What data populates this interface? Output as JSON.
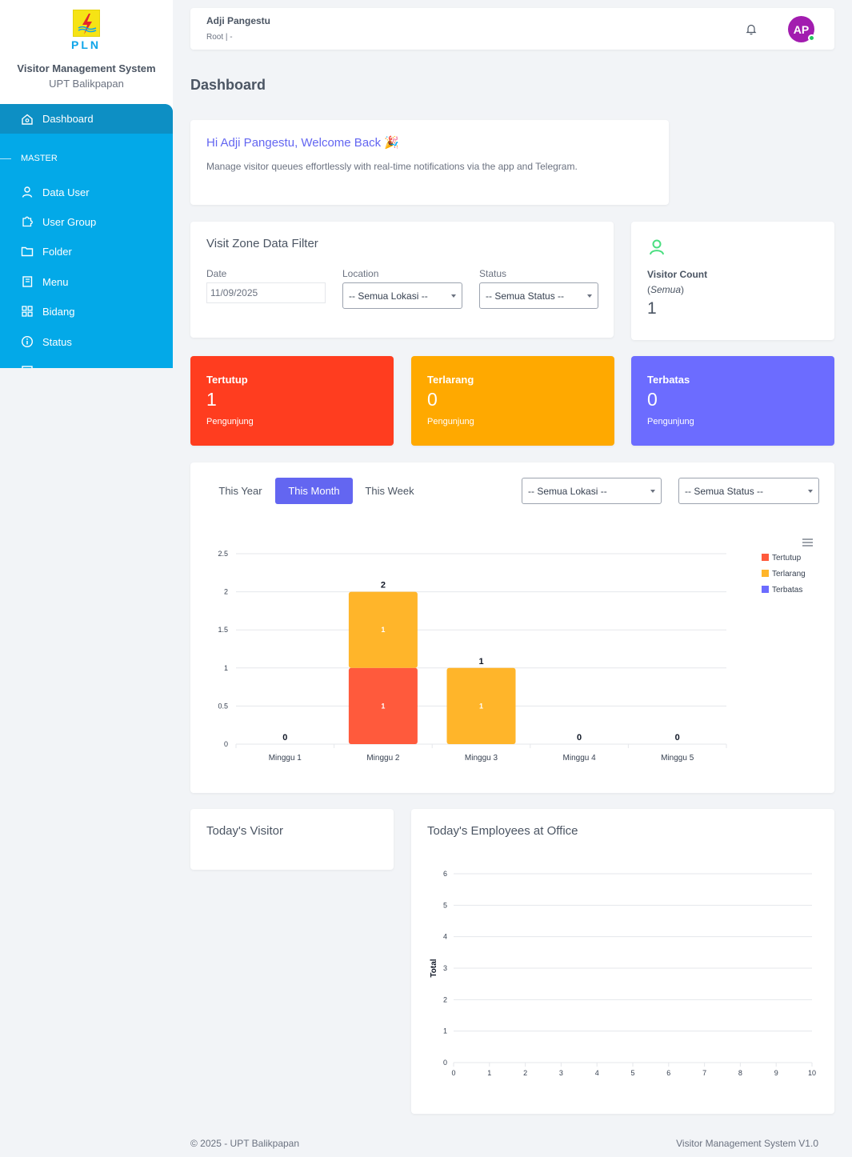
{
  "app": {
    "logo_text": "PLN",
    "title": "Visitor Management System",
    "subtitle": "UPT Balikpapan"
  },
  "sidebar": {
    "active": {
      "label": "Dashboard",
      "icon": "home-icon"
    },
    "section": "MASTER",
    "items": [
      {
        "label": "Data User",
        "icon": "user-icon"
      },
      {
        "label": "User Group",
        "icon": "puzzle-icon"
      },
      {
        "label": "Folder",
        "icon": "folder-icon"
      },
      {
        "label": "Menu",
        "icon": "book-icon"
      },
      {
        "label": "Bidang",
        "icon": "grid-icon"
      },
      {
        "label": "Status",
        "icon": "info-icon"
      }
    ]
  },
  "topbar": {
    "user_name": "Adji Pangestu",
    "user_role": "Root | -",
    "avatar_initials": "AP"
  },
  "page_title": "Dashboard",
  "welcome": {
    "title": "Hi Adji Pangestu, Welcome Back 🎉",
    "text": "Manage visitor queues effortlessly with real-time notifications via the app and Telegram."
  },
  "filter": {
    "title": "Visit Zone Data Filter",
    "date_label": "Date",
    "date_value": "11/09/2025",
    "location_label": "Location",
    "location_value": "-- Semua Lokasi --",
    "status_label": "Status",
    "status_value": "-- Semua Status --"
  },
  "visitor_count": {
    "label": "Visitor Count",
    "sub_prefix": "(",
    "sub_value": "Semua",
    "sub_suffix": ")",
    "value": "1"
  },
  "stats": [
    {
      "title": "Tertutup",
      "value": "1",
      "sub": "Pengunjung",
      "color": "#ff3d1f"
    },
    {
      "title": "Terlarang",
      "value": "0",
      "sub": "Pengunjung",
      "color": "#ffa900"
    },
    {
      "title": "Terbatas",
      "value": "0",
      "sub": "Pengunjung",
      "color": "#6c6cff"
    }
  ],
  "chart_panel": {
    "tabs": [
      "This Year",
      "This Month",
      "This Week"
    ],
    "active_tab": "This Month",
    "location_select": "-- Semua Lokasi --",
    "status_select": "-- Semua Status --"
  },
  "todays_visitor": {
    "title": "Today's Visitor"
  },
  "employees": {
    "title": "Today's Employees at Office"
  },
  "chart_data": [
    {
      "type": "bar",
      "stacked": true,
      "categories": [
        "Minggu 1",
        "Minggu 2",
        "Minggu 3",
        "Minggu 4",
        "Minggu 5"
      ],
      "series": [
        {
          "name": "Tertutup",
          "values": [
            0,
            1,
            0,
            0,
            0
          ],
          "color": "#ff5a3c"
        },
        {
          "name": "Terlarang",
          "values": [
            0,
            1,
            1,
            0,
            0
          ],
          "color": "#ffb52a"
        },
        {
          "name": "Terbatas",
          "values": [
            0,
            0,
            0,
            0,
            0
          ],
          "color": "#6c6cff"
        }
      ],
      "totals": [
        0,
        2,
        1,
        0,
        0
      ],
      "ylim": [
        0,
        2.5
      ],
      "yticks": [
        "0",
        "0.5",
        "1",
        "1.5",
        "2",
        "2.5"
      ],
      "grid": true,
      "legend": "top-right"
    },
    {
      "type": "bar",
      "ylabel": "Total",
      "xticks": [
        "0",
        "1",
        "2",
        "3",
        "4",
        "5",
        "6",
        "7",
        "8",
        "9",
        "10"
      ],
      "yticks": [
        "0",
        "1",
        "2",
        "3",
        "4",
        "5",
        "6"
      ],
      "xlim": [
        0,
        10
      ],
      "ylim": [
        0,
        6
      ],
      "grid": true,
      "series": []
    }
  ],
  "footer": {
    "left": "© 2025 - UPT Balikpapan",
    "right": "Visitor Management System V1.0"
  }
}
